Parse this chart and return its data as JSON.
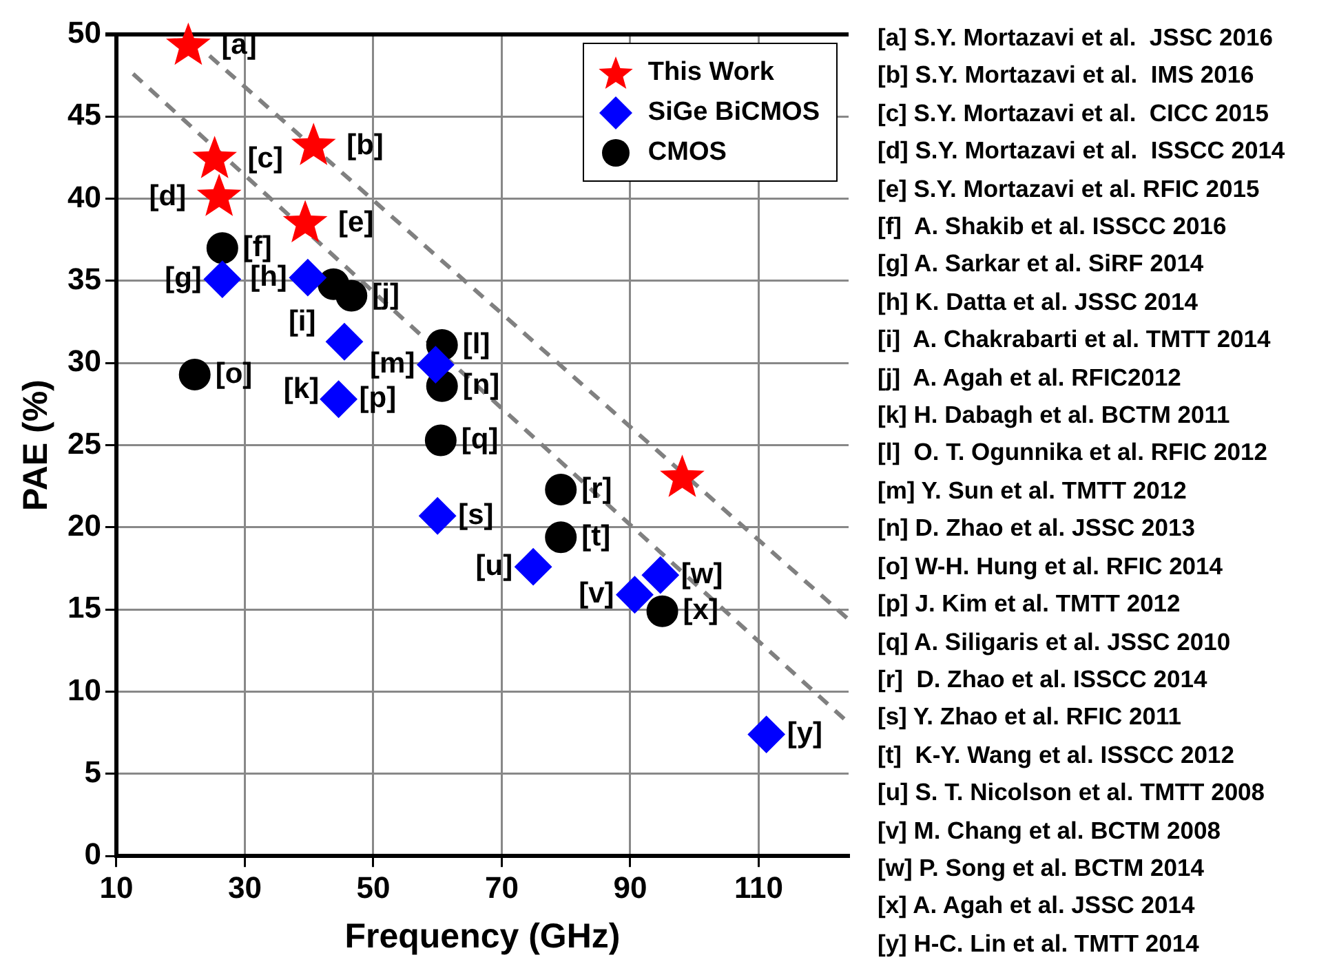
{
  "chart_data": {
    "type": "scatter",
    "xlabel": "Frequency (GHz)",
    "ylabel": "PAE (%)",
    "xlim": [
      10,
      124
    ],
    "xticks": [
      10,
      30,
      50,
      70,
      90,
      110
    ],
    "ylim": [
      0,
      50
    ],
    "yticks": [
      0,
      5,
      10,
      15,
      20,
      25,
      30,
      35,
      40,
      45,
      50
    ],
    "grid": true,
    "legend": "top right",
    "series": [
      {
        "name": "This Work",
        "type": "scatter",
        "marker": "star",
        "color": "#ff0000",
        "x": [
          21.2,
          40.7,
          25.3,
          26.0,
          39.4,
          98.1
        ],
        "values": [
          49.3,
          43.2,
          42.4,
          40.1,
          38.5,
          23.0
        ]
      },
      {
        "name": "SiGe BiCMOS",
        "type": "scatter",
        "marker": "diamond",
        "color": "#0000ff",
        "x": [
          26.5,
          39.8,
          45.5,
          59.7,
          44.6,
          60.0,
          74.9,
          90.7,
          94.7,
          111.2
        ],
        "values": [
          35.1,
          35.2,
          31.3,
          29.9,
          27.8,
          20.7,
          17.6,
          15.9,
          17.1,
          7.4
        ]
      },
      {
        "name": "CMOS",
        "type": "scatter",
        "marker": "circle",
        "color": "#000000",
        "x": [
          26.5,
          22.2,
          43.8,
          46.6,
          60.7,
          60.7,
          60.5,
          79.2,
          79.2,
          95.0
        ],
        "values": [
          37.0,
          29.3,
          34.8,
          34.1,
          31.1,
          28.6,
          25.3,
          22.3,
          19.4,
          14.9
        ]
      },
      {
        "type": "line",
        "marker": "none",
        "line_style": "dashed",
        "color": "#808080",
        "x": [
          24.5,
          124
        ],
        "values": [
          48.7,
          14.4
        ]
      },
      {
        "type": "line",
        "marker": "none",
        "line_style": "dashed",
        "color": "#808080",
        "x": [
          12.6,
          124
        ],
        "values": [
          47.6,
          8.1
        ]
      }
    ],
    "annotations": [
      {
        "text": "[a]",
        "x": 21.2,
        "y": 49.3
      },
      {
        "text": "[b]",
        "x": 40.7,
        "y": 43.2
      },
      {
        "text": "[c]",
        "x": 25.3,
        "y": 42.4
      },
      {
        "text": "[d]",
        "x": 26.0,
        "y": 40.1
      },
      {
        "text": "[e]",
        "x": 39.4,
        "y": 38.5
      },
      {
        "text": "[f]",
        "x": 26.5,
        "y": 37.0
      },
      {
        "text": "[g]",
        "x": 26.5,
        "y": 35.1
      },
      {
        "text": "[h]",
        "x": 39.8,
        "y": 35.2
      },
      {
        "text": "[i]",
        "x": 43.8,
        "y": 34.8
      },
      {
        "text": "[j]",
        "x": 46.6,
        "y": 34.1
      },
      {
        "text": "[k]",
        "x": 45.5,
        "y": 31.3
      },
      {
        "text": "[l]",
        "x": 60.7,
        "y": 31.1
      },
      {
        "text": "[m]",
        "x": 59.7,
        "y": 29.9
      },
      {
        "text": "[n]",
        "x": 60.7,
        "y": 28.6
      },
      {
        "text": "[o]",
        "x": 22.2,
        "y": 29.3
      },
      {
        "text": "[p]",
        "x": 44.6,
        "y": 27.8
      },
      {
        "text": "[q]",
        "x": 60.5,
        "y": 25.3
      },
      {
        "text": "[r]",
        "x": 79.2,
        "y": 22.3
      },
      {
        "text": "[s]",
        "x": 60.0,
        "y": 20.7
      },
      {
        "text": "[t]",
        "x": 79.2,
        "y": 19.4
      },
      {
        "text": "[u]",
        "x": 74.9,
        "y": 17.6
      },
      {
        "text": "[v]",
        "x": 90.7,
        "y": 15.9
      },
      {
        "text": "[w]",
        "x": 94.7,
        "y": 17.1
      },
      {
        "text": "[x]",
        "x": 95.0,
        "y": 14.9
      },
      {
        "text": "[y]",
        "x": 111.2,
        "y": 7.4
      },
      "[a] S.Y. Mortazavi et al.  JSSC 2016",
      "[b] S.Y. Mortazavi et al.  IMS 2016",
      "[c] S.Y. Mortazavi et al.  CICC 2015",
      "[d] S.Y. Mortazavi et al.  ISSCC 2014",
      "[e] S.Y. Mortazavi et al. RFIC 2015",
      "[f]  A. Shakib et al. ISSCC 2016",
      "[g] A. Sarkar et al. SiRF 2014",
      "[h] K. Datta et al. JSSC 2014",
      "[i]  A. Chakrabarti et al. TMTT 2014",
      "[j]  A. Agah et al. RFIC2012",
      "[k] H. Dabagh et al. BCTM 2011",
      "[l]  O. T. Ogunnika et al. RFIC 2012",
      "[m] Y. Sun et al. TMTT 2012",
      "[n] D. Zhao et al. JSSC 2013",
      "[o] W-H. Hung et al. RFIC 2014",
      "[p] J. Kim et al. TMTT 2012",
      "[q] A. Siligaris et al. JSSC 2010",
      "[r]  D. Zhao et al. ISSCC 2014",
      "[s] Y. Zhao et al. RFIC 2011",
      "[t]  K-Y. Wang et al. ISSCC 2012",
      "[u] S. T. Nicolson et al. TMTT 2008",
      "[v] M. Chang et al. BCTM 2008",
      "[w] P. Song et al. BCTM 2014",
      "[x] A. Agah et al. JSSC 2014",
      "[y] H-C. Lin et al. TMTT 2014"
    ]
  }
}
